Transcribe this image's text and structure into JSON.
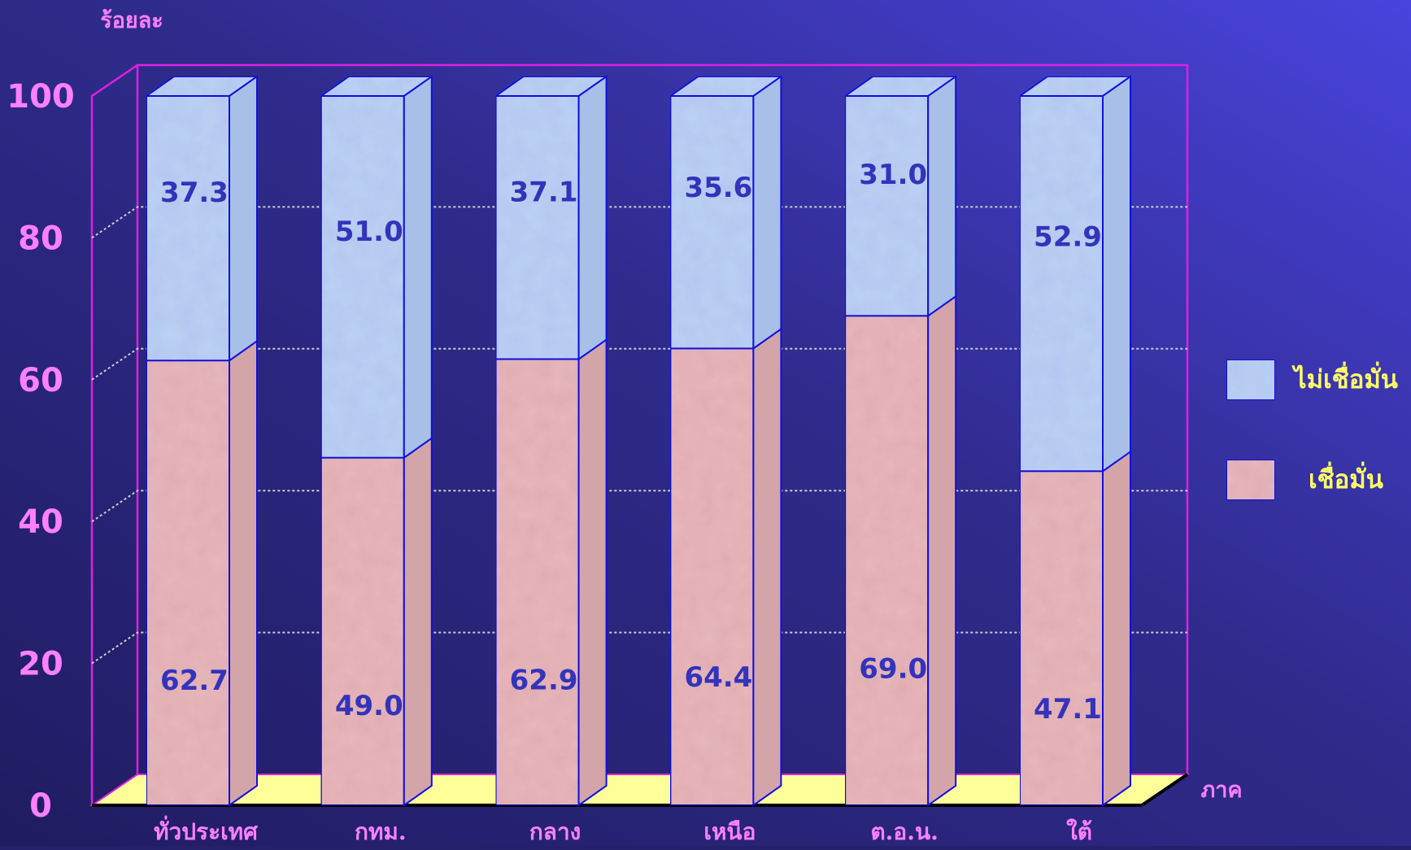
{
  "chart_data": {
    "type": "bar",
    "stacked": true,
    "three_d": true,
    "ylabel": "ร้อยละ",
    "xlabel": "ภาค",
    "ylim": [
      0,
      100
    ],
    "yticks": [
      0,
      20,
      40,
      60,
      80,
      100
    ],
    "grid": true,
    "legend_position": "right",
    "categories": [
      "ทั่วประเทศ",
      "กทม.",
      "กลาง",
      "เหนือ",
      "ต.อ.น.",
      "ใต้"
    ],
    "series": [
      {
        "name": "เชื่อมั่น",
        "values": [
          62.7,
          49.0,
          62.9,
          64.4,
          69.0,
          47.1
        ],
        "labels": [
          "62.7",
          "49.0",
          "62.9",
          "64.4",
          "69.0",
          "47.1"
        ],
        "color": "#e6b9bd"
      },
      {
        "name": "ไม่เชื่อมั่น",
        "values": [
          37.3,
          51.0,
          37.1,
          35.6,
          31.0,
          52.9
        ],
        "labels": [
          "37.3",
          "51.0",
          "37.1",
          "35.6",
          "31.0",
          "52.9"
        ],
        "color": "#bcd3f4"
      }
    ],
    "legend_order": [
      "ไม่เชื่อมั่น",
      "เชื่อมั่น"
    ],
    "colors": {
      "background_top": "#4a43dd",
      "background_bottom": "#201c62",
      "frame": "#e020e0",
      "floor": "#ffff99",
      "tick_label": "#ff80ff",
      "bar_outline": "#1010e0",
      "data_label": "#3333bb",
      "legend_text": "#ffff66",
      "grid": "#cfcfcf"
    }
  }
}
